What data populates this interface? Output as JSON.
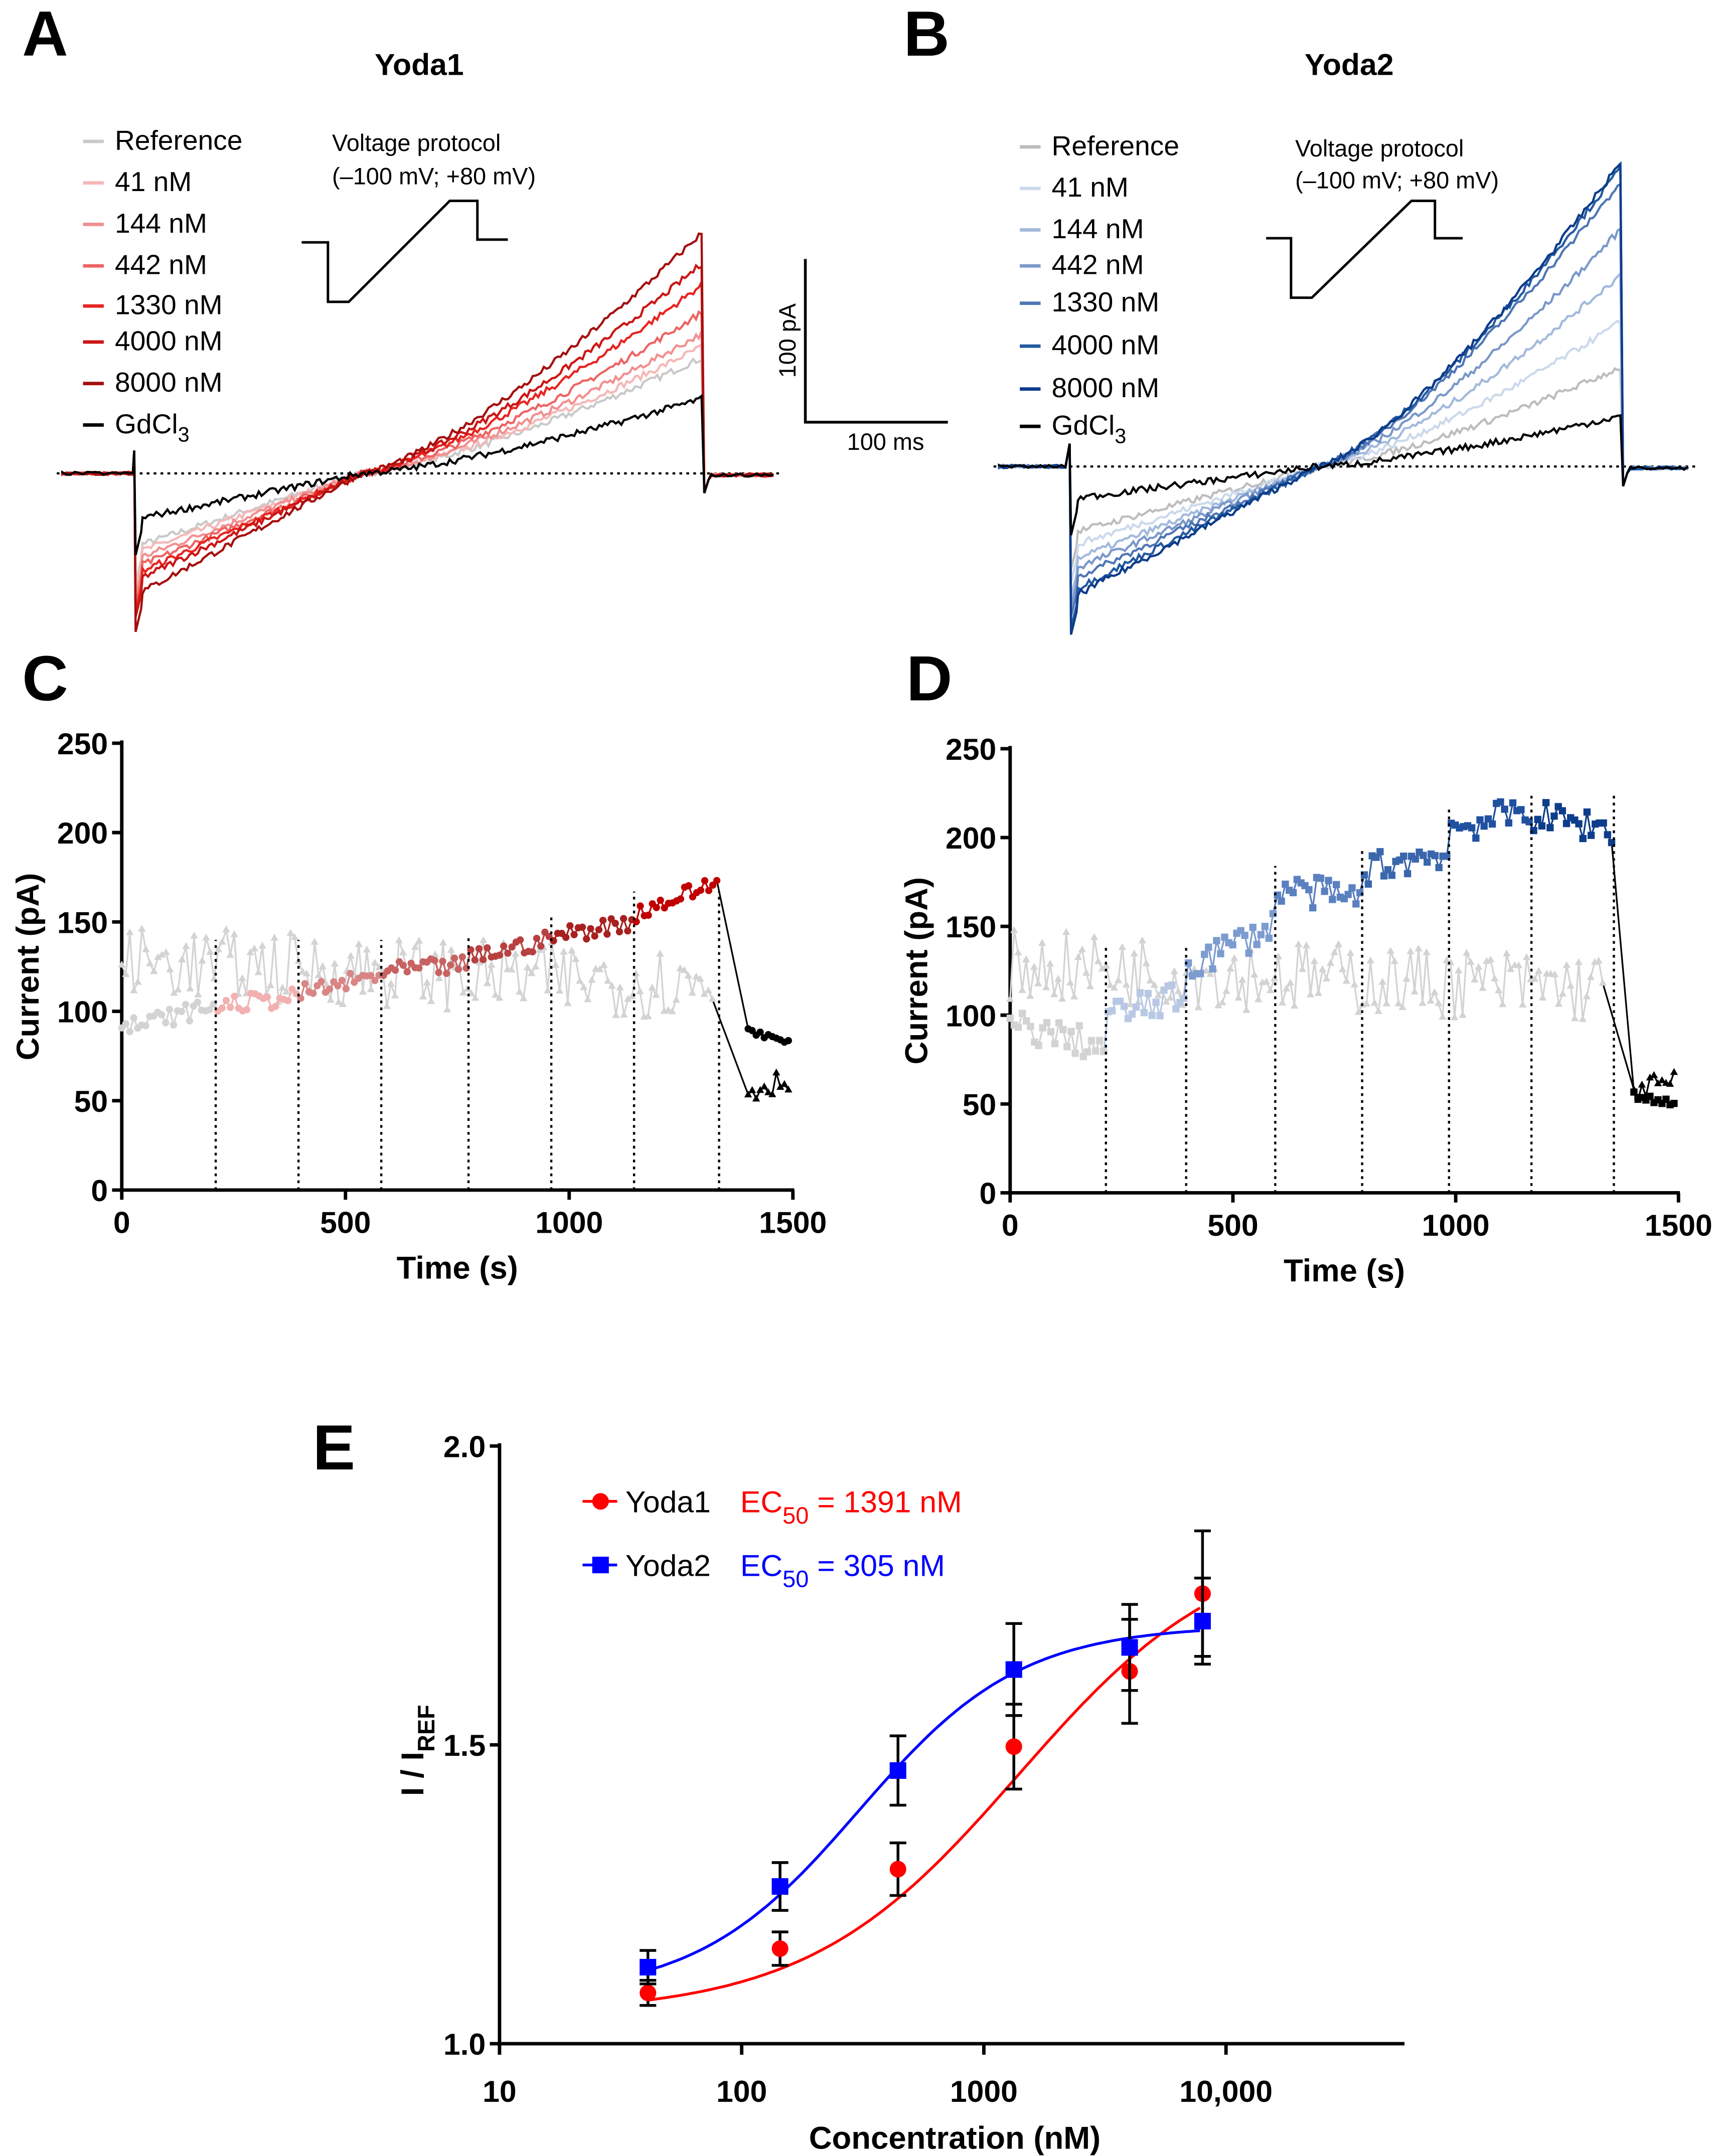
{
  "panels": {
    "A": {
      "letter": "A",
      "title": "Yoda1"
    },
    "B": {
      "letter": "B",
      "title": "Yoda2"
    },
    "C": {
      "letter": "C"
    },
    "D": {
      "letter": "D"
    },
    "E": {
      "letter": "E"
    }
  },
  "protocol": {
    "line1": "Voltage protocol",
    "line2": "(–100 mV; +80 mV)"
  },
  "scalebar": {
    "y_label": "100 pA",
    "x_label": "100 ms"
  },
  "gd_label": {
    "main": "GdCl",
    "sub": "3"
  },
  "chart_data": [
    {
      "id": "A",
      "type": "line",
      "title": "Yoda1",
      "description_units": "current (pA) during voltage ramp",
      "traces": [
        {
          "label": "Reference",
          "color": "#c9c9c9",
          "start_pA": -45,
          "end_pA": 71
        },
        {
          "label": "41 nM",
          "color": "#f5b8b8",
          "start_pA": -49,
          "end_pA": 78
        },
        {
          "label": "144 nM",
          "color": "#f19090",
          "start_pA": -53,
          "end_pA": 86
        },
        {
          "label": "442 nM",
          "color": "#ee6464",
          "start_pA": -58,
          "end_pA": 99
        },
        {
          "label": "1330 nM",
          "color": "#e82420",
          "start_pA": -62,
          "end_pA": 116
        },
        {
          "label": "4000 nM",
          "color": "#cc1616",
          "start_pA": -66,
          "end_pA": 129
        },
        {
          "label": "8000 nM",
          "color": "#a50f0f",
          "start_pA": -75,
          "end_pA": 148
        },
        {
          "label": "GdCl3",
          "color": "#000000",
          "start_pA": -28,
          "end_pA": 46
        }
      ]
    },
    {
      "id": "B",
      "type": "line",
      "title": "Yoda2",
      "traces": [
        {
          "label": "Reference",
          "color": "#bdbdbd",
          "start_pA": -41,
          "end_pA": 61
        },
        {
          "label": "41 nM",
          "color": "#ccd9ec",
          "start_pA": -49,
          "end_pA": 89
        },
        {
          "label": "144 nM",
          "color": "#a2b9dc",
          "start_pA": -58,
          "end_pA": 118
        },
        {
          "label": "442 nM",
          "color": "#7a98c9",
          "start_pA": -64,
          "end_pA": 146
        },
        {
          "label": "1330 nM",
          "color": "#5077b5",
          "start_pA": -70,
          "end_pA": 175
        },
        {
          "label": "4000 nM",
          "color": "#245aa1",
          "start_pA": -77,
          "end_pA": 184
        },
        {
          "label": "8000 nM",
          "color": "#0c3c8a",
          "start_pA": -81,
          "end_pA": 187
        },
        {
          "label": "GdCl3",
          "color": "#000000",
          "start_pA": -20,
          "end_pA": 31
        }
      ]
    },
    {
      "id": "C",
      "type": "line",
      "xlabel": "Time (s)",
      "ylabel": "Current (pA)",
      "xlim": [
        0,
        1500
      ],
      "ylim": [
        0,
        250
      ],
      "xticks": [
        "0",
        "500",
        "1000",
        "1500"
      ],
      "yticks": [
        "0",
        "50",
        "100",
        "150",
        "200",
        "250"
      ],
      "application_times_s": [
        210,
        395,
        580,
        775,
        960,
        1145,
        1335
      ],
      "main_series": [
        {
          "t": [
            0,
            205
          ],
          "pA": [
            90,
            103
          ],
          "color": "#d3d3d3"
        },
        {
          "t": [
            215,
            390
          ],
          "pA": [
            103,
            108
          ],
          "color": "#f2b0b0"
        },
        {
          "t": [
            400,
            575
          ],
          "pA": [
            110,
            120
          ],
          "color": "#d98585"
        },
        {
          "t": [
            585,
            770
          ],
          "pA": [
            122,
            126
          ],
          "color": "#c86262"
        },
        {
          "t": [
            780,
            955
          ],
          "pA": [
            130,
            140
          ],
          "color": "#b84040"
        },
        {
          "t": [
            965,
            1140
          ],
          "pA": [
            142,
            150
          ],
          "color": "#a82020"
        },
        {
          "t": [
            1150,
            1330
          ],
          "pA": [
            155,
            172
          ],
          "color": "#c00000"
        },
        {
          "t": [
            1400,
            1490
          ],
          "pA": [
            90,
            82
          ],
          "color": "#000000"
        }
      ],
      "control_series": [
        {
          "t": [
            0,
            1320
          ],
          "pA": [
            128,
            115
          ],
          "color": "#d3d3d3"
        },
        {
          "t": [
            1400,
            1490
          ],
          "pA": [
            55,
            63
          ],
          "color": "#000000"
        }
      ]
    },
    {
      "id": "D",
      "type": "line",
      "xlabel": "Time (s)",
      "ylabel": "Current (pA)",
      "xlim": [
        0,
        1500
      ],
      "ylim": [
        0,
        250
      ],
      "xticks": [
        "0",
        "500",
        "1000",
        "1500"
      ],
      "yticks": [
        "0",
        "50",
        "100",
        "150",
        "200",
        "250"
      ],
      "application_times_s": [
        215,
        395,
        595,
        790,
        985,
        1170,
        1355
      ],
      "main_series": [
        {
          "t": [
            0,
            210
          ],
          "pA": [
            95,
            82
          ],
          "color": "#d3d3d3"
        },
        {
          "t": [
            220,
            390
          ],
          "pA": [
            100,
            110
          ],
          "color": "#b8c8e4"
        },
        {
          "t": [
            400,
            590
          ],
          "pA": [
            128,
            150
          ],
          "color": "#7c9cd0"
        },
        {
          "t": [
            600,
            785
          ],
          "pA": [
            172,
            165
          ],
          "color": "#5a80c0"
        },
        {
          "t": [
            795,
            980
          ],
          "pA": [
            182,
            192
          ],
          "color": "#3a66ac"
        },
        {
          "t": [
            990,
            1165
          ],
          "pA": [
            205,
            215
          ],
          "color": "#2050a0"
        },
        {
          "t": [
            1175,
            1350
          ],
          "pA": [
            212,
            205
          ],
          "color": "#0d3d8a"
        },
        {
          "t": [
            1400,
            1490
          ],
          "pA": [
            55,
            50
          ],
          "color": "#000000"
        }
      ],
      "control_series": [
        {
          "t": [
            0,
            1330
          ],
          "pA": [
            128,
            115
          ],
          "color": "#d3d3d3"
        },
        {
          "t": [
            1400,
            1490
          ],
          "pA": [
            58,
            62
          ],
          "color": "#000000"
        }
      ]
    },
    {
      "id": "E",
      "type": "scatter",
      "xlabel": "Concentration (nM)",
      "ylabel_main": "I / I",
      "ylabel_sub": "REF",
      "xscale": "log",
      "xlim": [
        10,
        55000
      ],
      "ylim": [
        1.0,
        2.0
      ],
      "xticks": [
        {
          "value": 10,
          "label": "10"
        },
        {
          "value": 100,
          "label": "100"
        },
        {
          "value": 1000,
          "label": "1000"
        },
        {
          "value": 10000,
          "label": "10,000"
        }
      ],
      "yticks": [
        {
          "value": 1.0,
          "label": "1.0"
        },
        {
          "value": 1.5,
          "label": "1.5"
        },
        {
          "value": 2.0,
          "label": "2.0"
        }
      ],
      "legend_position": "top-left",
      "series": [
        {
          "name": "Yoda1",
          "color": "#ff0000",
          "marker": "circle",
          "ec50_prefix": "EC",
          "ec50_sub": "50",
          "ec50_value": " = 1391 nM",
          "ec50_nM": 1391,
          "x": [
            41,
            144,
            442,
            1330,
            4000,
            8000
          ],
          "y": [
            1.085,
            1.159,
            1.292,
            1.497,
            1.623,
            1.753
          ],
          "err": [
            0.021,
            0.028,
            0.044,
            0.071,
            0.087,
            0.105
          ]
        },
        {
          "name": "Yoda2",
          "color": "#0000ff",
          "marker": "square",
          "ec50_prefix": "EC",
          "ec50_sub": "50",
          "ec50_value": " = 305 nM",
          "ec50_nM": 305,
          "x": [
            41,
            144,
            442,
            1330,
            4000,
            8000
          ],
          "y": [
            1.128,
            1.263,
            1.457,
            1.626,
            1.663,
            1.707
          ],
          "err": [
            0.028,
            0.04,
            0.058,
            0.077,
            0.072,
            0.072
          ]
        }
      ]
    }
  ]
}
